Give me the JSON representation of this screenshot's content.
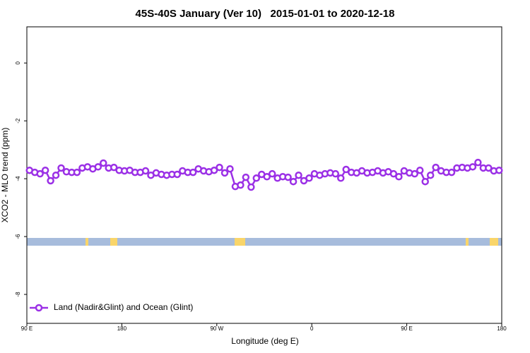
{
  "chart_data": {
    "type": "line",
    "title": "45S-40S January (Ver 10)   2015-01-01 to 2020-12-18",
    "x_label": "Longitude (deg E)",
    "y_label": "XCO2 - MLO trend (ppm)",
    "x": [
      92.5,
      97.5,
      102.5,
      107.5,
      112.5,
      117.5,
      122.5,
      127.5,
      132.5,
      137.5,
      142.5,
      147.5,
      152.5,
      157.5,
      162.5,
      167.5,
      172.5,
      177.5,
      182.5,
      187.5,
      192.5,
      197.5,
      202.5,
      207.5,
      212.5,
      217.5,
      222.5,
      227.5,
      232.5,
      237.5,
      242.5,
      247.5,
      252.5,
      257.5,
      262.5,
      267.5,
      272.5,
      277.5,
      282.5,
      287.5,
      292.5,
      297.5,
      302.5,
      307.5,
      312.5,
      317.5,
      322.5,
      327.5,
      332.5,
      337.5,
      342.5,
      347.5,
      352.5,
      357.5,
      362.5,
      367.5,
      372.5,
      377.5,
      382.5,
      387.5,
      392.5,
      397.5,
      402.5,
      407.5,
      412.5,
      417.5,
      422.5,
      427.5,
      432.5,
      437.5,
      442.5,
      447.5,
      452.5,
      457.5,
      462.5,
      467.5,
      472.5,
      477.5,
      482.5,
      487.5,
      492.5,
      497.5,
      502.5,
      507.5,
      512.5,
      517.5,
      522.5,
      527.5,
      532.5,
      537.5
    ],
    "series": [
      {
        "name": "Land (Nadir&Glint) and Ocean (Glint)",
        "color": "#9b30e6",
        "values": [
          -3.71,
          -3.78,
          -3.83,
          -3.71,
          -4.07,
          -3.88,
          -3.63,
          -3.76,
          -3.78,
          -3.78,
          -3.63,
          -3.59,
          -3.66,
          -3.59,
          -3.46,
          -3.63,
          -3.61,
          -3.71,
          -3.73,
          -3.71,
          -3.78,
          -3.78,
          -3.73,
          -3.88,
          -3.8,
          -3.85,
          -3.88,
          -3.85,
          -3.85,
          -3.73,
          -3.78,
          -3.78,
          -3.66,
          -3.73,
          -3.76,
          -3.71,
          -3.61,
          -3.8,
          -3.66,
          -4.27,
          -4.22,
          -3.95,
          -4.29,
          -3.98,
          -3.85,
          -3.93,
          -3.83,
          -3.98,
          -3.93,
          -3.95,
          -4.1,
          -3.88,
          -4.07,
          -3.98,
          -3.83,
          -3.88,
          -3.83,
          -3.8,
          -3.83,
          -3.98,
          -3.68,
          -3.78,
          -3.8,
          -3.73,
          -3.8,
          -3.78,
          -3.73,
          -3.8,
          -3.76,
          -3.83,
          -3.93,
          -3.73,
          -3.8,
          -3.83,
          -3.71,
          -4.1,
          -3.88,
          -3.61,
          -3.73,
          -3.78,
          -3.78,
          -3.63,
          -3.61,
          -3.63,
          -3.59,
          -3.44,
          -3.63,
          -3.63,
          -3.73,
          -3.71
        ]
      }
    ],
    "xlim": [
      90,
      540
    ],
    "xticks": [
      {
        "value": 90,
        "label": "90 E"
      },
      180,
      {
        "value": 270,
        "label": "90 W"
      },
      {
        "value": 360,
        "label": "0"
      },
      {
        "value": 450,
        "label": "90 E"
      },
      {
        "value": 540,
        "label": "180"
      }
    ],
    "ylim": [
      -9,
      1.25
    ],
    "yticks": [
      0,
      -2,
      -4,
      -6,
      -8
    ],
    "legend": "bottom-left"
  }
}
